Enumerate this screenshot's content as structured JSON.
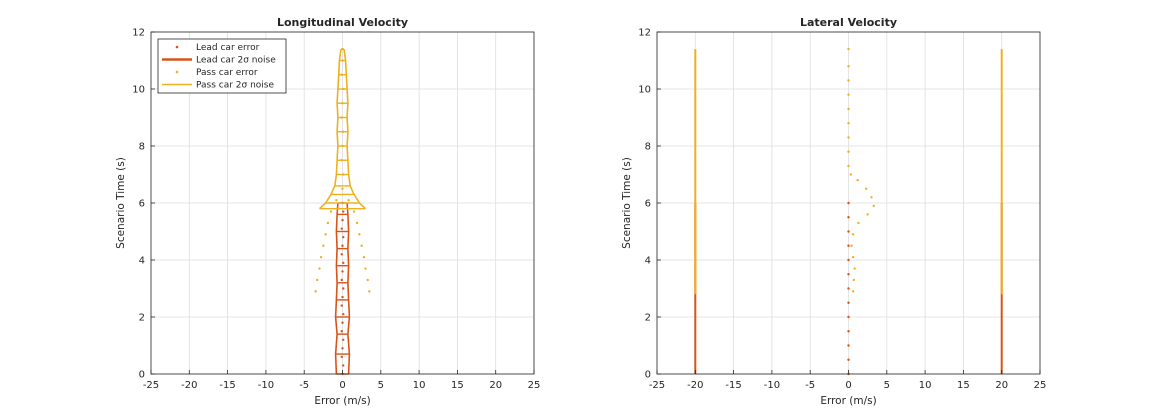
{
  "colors": {
    "lead": "#d95319",
    "pass": "#edb120",
    "grid": "#dedede",
    "axis": "#262626"
  },
  "legend": {
    "items": [
      {
        "label": "Lead car error",
        "kind": "dots",
        "color": "#d95319"
      },
      {
        "label": "Lead car 2σ noise",
        "kind": "line",
        "color": "#d95319"
      },
      {
        "label": "Pass car error",
        "kind": "dots",
        "color": "#edb120"
      },
      {
        "label": "Pass car 2σ noise",
        "kind": "line",
        "color": "#edb120"
      }
    ],
    "placement": "top-left"
  },
  "chart_data": [
    {
      "type": "scatter",
      "title": "Longitudinal Velocity",
      "xlabel": "Error (m/s)",
      "ylabel": "Scenario Time (s)",
      "xlim": [
        -25,
        25
      ],
      "ylim": [
        0,
        12
      ],
      "xticks": [
        -25,
        -20,
        -15,
        -10,
        -5,
        0,
        5,
        10,
        15,
        20,
        25
      ],
      "yticks": [
        0,
        2,
        4,
        6,
        8,
        10,
        12
      ],
      "grid": true,
      "legend": true,
      "series": [
        {
          "name": "Lead car error",
          "kind": "dots",
          "color": "#d95319",
          "points": [
            [
              0,
              0
            ],
            [
              0.1,
              0.3
            ],
            [
              -0.1,
              0.6
            ],
            [
              0,
              0.9
            ],
            [
              0.1,
              1.2
            ],
            [
              -0.1,
              1.5
            ],
            [
              0,
              1.8
            ],
            [
              0.1,
              2.1
            ],
            [
              -0.1,
              2.4
            ],
            [
              0,
              2.7
            ],
            [
              0.1,
              3.0
            ],
            [
              -0.1,
              3.3
            ],
            [
              0,
              3.6
            ],
            [
              0.1,
              3.9
            ],
            [
              -0.1,
              4.2
            ],
            [
              0,
              4.5
            ],
            [
              0.1,
              4.8
            ],
            [
              -0.1,
              5.1
            ],
            [
              0,
              5.4
            ],
            [
              0.1,
              5.7
            ],
            [
              0,
              6.0
            ]
          ]
        },
        {
          "name": "Lead car 2σ noise",
          "kind": "band",
          "color": "#d95319",
          "y": [
            0,
            0.7,
            1.4,
            2.0,
            2.6,
            3.2,
            3.8,
            4.4,
            5.0,
            5.6,
            6.0
          ],
          "half_width": [
            0.8,
            0.9,
            0.7,
            0.9,
            0.8,
            0.7,
            0.8,
            0.7,
            0.8,
            0.7,
            0.6
          ]
        },
        {
          "name": "Pass car error",
          "kind": "dots",
          "color": "#edb120",
          "points": [
            [
              -3.5,
              2.9
            ],
            [
              -3.3,
              3.3
            ],
            [
              -3.0,
              3.7
            ],
            [
              -2.8,
              4.1
            ],
            [
              -2.5,
              4.5
            ],
            [
              -2.2,
              4.9
            ],
            [
              -1.9,
              5.3
            ],
            [
              -1.5,
              5.7
            ],
            [
              -0.8,
              6.1
            ],
            [
              3.5,
              2.9
            ],
            [
              3.3,
              3.3
            ],
            [
              3.0,
              3.7
            ],
            [
              2.8,
              4.1
            ],
            [
              2.5,
              4.5
            ],
            [
              2.2,
              4.9
            ],
            [
              1.9,
              5.3
            ],
            [
              1.5,
              5.7
            ],
            [
              0.8,
              6.1
            ],
            [
              0,
              6.5
            ],
            [
              0.1,
              7.0
            ],
            [
              -0.1,
              7.5
            ],
            [
              0,
              8.0
            ],
            [
              0.1,
              8.5
            ],
            [
              -0.1,
              9.0
            ],
            [
              0,
              9.5
            ],
            [
              0.1,
              10.0
            ],
            [
              -0.1,
              10.5
            ],
            [
              0,
              11.0
            ],
            [
              0,
              11.4
            ]
          ]
        },
        {
          "name": "Pass car 2σ noise",
          "kind": "band",
          "color": "#edb120",
          "y": [
            5.8,
            6.0,
            6.3,
            6.6,
            7.0,
            7.5,
            8.0,
            8.5,
            9.0,
            9.5,
            10.0,
            10.5,
            11.0,
            11.4
          ],
          "half_width": [
            3.0,
            2.2,
            1.5,
            1.0,
            0.8,
            0.7,
            0.6,
            0.7,
            0.6,
            0.7,
            0.6,
            0.5,
            0.4,
            0.2
          ]
        }
      ]
    },
    {
      "type": "scatter",
      "title": "Lateral Velocity",
      "xlabel": "Error (m/s)",
      "ylabel": "Scenario Time (s)",
      "xlim": [
        -25,
        25
      ],
      "ylim": [
        0,
        12
      ],
      "xticks": [
        -25,
        -20,
        -15,
        -10,
        -5,
        0,
        5,
        10,
        15,
        20,
        25
      ],
      "yticks": [
        0,
        2,
        4,
        6,
        8,
        10,
        12
      ],
      "grid": true,
      "legend": false,
      "series": [
        {
          "name": "Lead car error",
          "kind": "dots",
          "color": "#d95319",
          "points": [
            [
              0,
              0
            ],
            [
              0,
              0.5
            ],
            [
              0,
              1.0
            ],
            [
              0,
              1.5
            ],
            [
              0,
              2.0
            ],
            [
              0,
              2.5
            ],
            [
              0,
              3.0
            ],
            [
              0,
              3.5
            ],
            [
              0,
              4.0
            ],
            [
              0,
              4.5
            ],
            [
              0,
              5.0
            ],
            [
              0,
              5.5
            ],
            [
              0,
              6.0
            ]
          ]
        },
        {
          "name": "Lead car 2σ noise",
          "kind": "vlines",
          "color": "#d95319",
          "x": [
            -20,
            20
          ],
          "y_range": [
            0,
            6.0
          ]
        },
        {
          "name": "Pass car error",
          "kind": "dots",
          "color": "#edb120",
          "points": [
            [
              0.6,
              2.9
            ],
            [
              0.7,
              3.3
            ],
            [
              0.8,
              3.7
            ],
            [
              0.6,
              4.1
            ],
            [
              0.4,
              4.5
            ],
            [
              0.6,
              4.9
            ],
            [
              1.3,
              5.3
            ],
            [
              2.5,
              5.6
            ],
            [
              3.3,
              5.9
            ],
            [
              3.0,
              6.2
            ],
            [
              2.3,
              6.5
            ],
            [
              1.2,
              6.8
            ],
            [
              0.3,
              7.0
            ],
            [
              0,
              7.3
            ],
            [
              0,
              7.8
            ],
            [
              0,
              8.3
            ],
            [
              0,
              8.8
            ],
            [
              0,
              9.3
            ],
            [
              0,
              9.8
            ],
            [
              0,
              10.3
            ],
            [
              0,
              10.8
            ],
            [
              0,
              11.4
            ]
          ]
        },
        {
          "name": "Pass car 2σ noise",
          "kind": "vlines",
          "color": "#edb120",
          "x": [
            -20,
            20
          ],
          "y_range": [
            2.8,
            11.4
          ]
        }
      ]
    }
  ]
}
